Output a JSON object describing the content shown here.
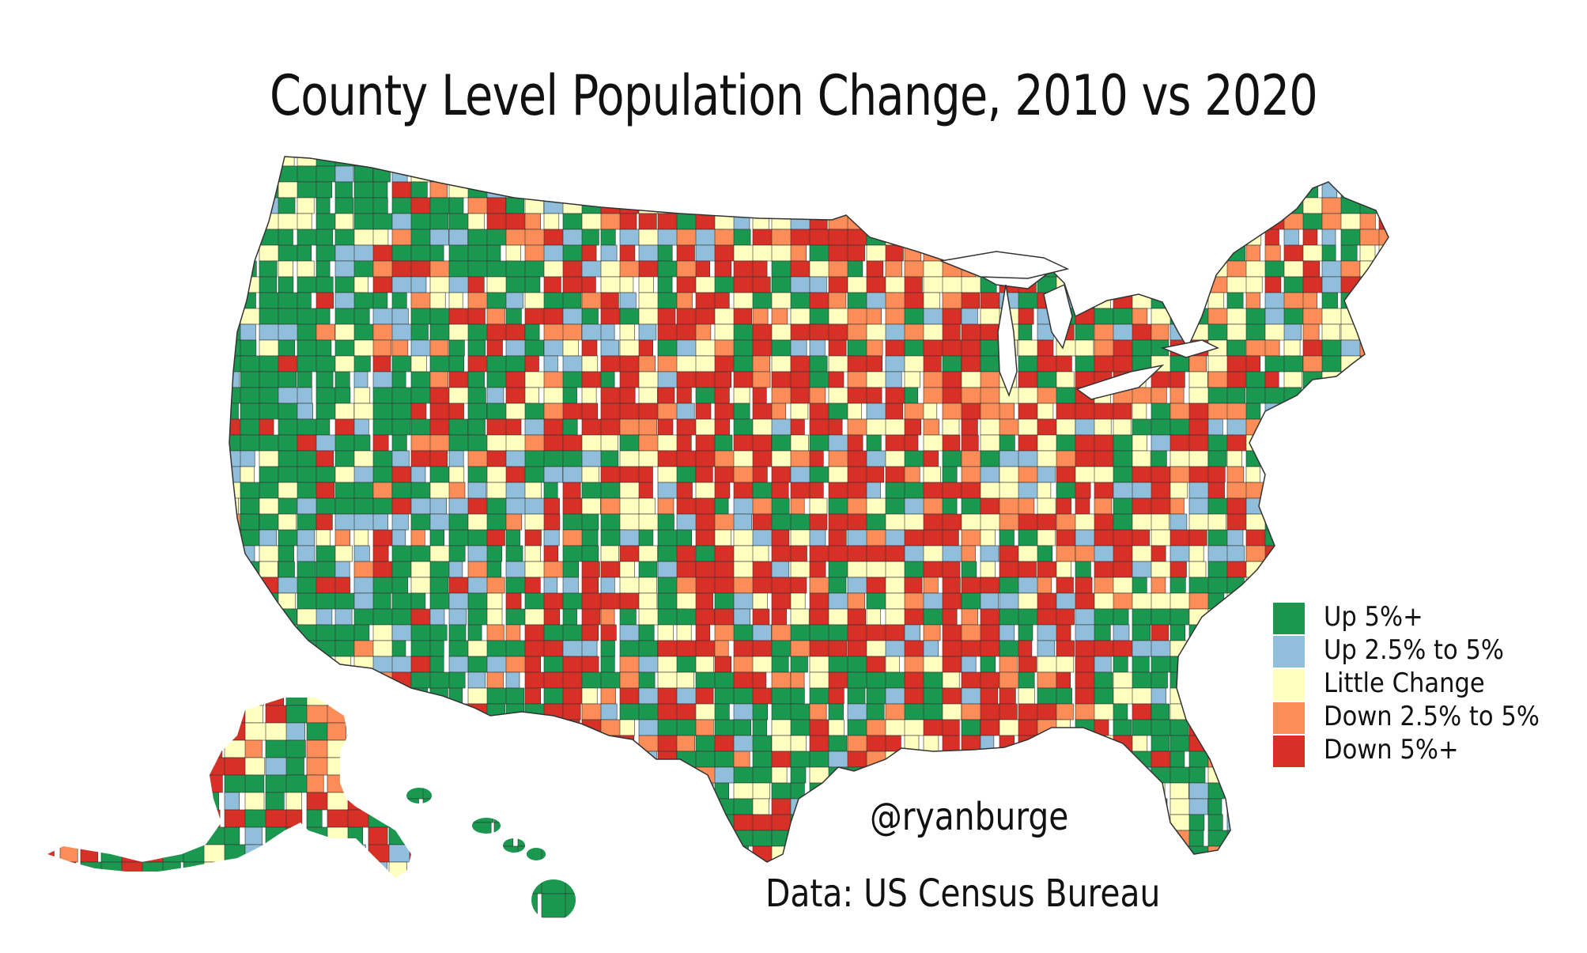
{
  "title": "County Level Population Change, 2010 vs 2020",
  "credit": "@ryanburge",
  "source": "Data: US Census Bureau",
  "colors": {
    "up5": "#1a9850",
    "up25": "#91bfdb",
    "little": "#ffffbf",
    "down25": "#fc8d59",
    "down5": "#d73027",
    "border": "#333333"
  },
  "legend": [
    {
      "label": "Up 5%+",
      "color_key": "up5"
    },
    {
      "label": "Up 2.5% to 5%",
      "color_key": "up25"
    },
    {
      "label": "Little Change",
      "color_key": "little"
    },
    {
      "label": "Down 2.5% to 5%",
      "color_key": "down25"
    },
    {
      "label": "Down 5%+",
      "color_key": "down5"
    }
  ]
}
